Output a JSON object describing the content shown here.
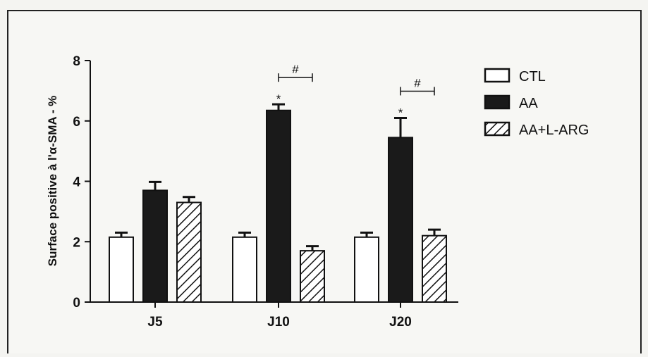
{
  "chart_data": {
    "type": "bar",
    "ylabel": "Surface positive à l'α-SMA - %",
    "xlabel": "",
    "ylim": [
      0,
      8
    ],
    "yticks": [
      0,
      2,
      4,
      6,
      8
    ],
    "categories": [
      "J5",
      "J10",
      "J20"
    ],
    "series": [
      {
        "name": "CTL",
        "values": [
          2.15,
          2.15,
          2.15
        ],
        "errors": [
          0.15,
          0.15,
          0.15
        ],
        "pattern": "open",
        "color": "#ffffff"
      },
      {
        "name": "AA",
        "values": [
          3.7,
          6.35,
          5.45
        ],
        "errors": [
          0.28,
          0.2,
          0.65
        ],
        "pattern": "solid",
        "color": "#1a1a1a"
      },
      {
        "name": "AA+L-ARG",
        "values": [
          3.3,
          1.7,
          2.2
        ],
        "errors": [
          0.18,
          0.15,
          0.2
        ],
        "pattern": "hatched",
        "color": "#ffffff"
      }
    ],
    "annotations": [
      {
        "category": "J10",
        "series": "AA",
        "marker": "*"
      },
      {
        "category": "J10",
        "bracket": [
          "AA",
          "AA+L-ARG"
        ],
        "marker": "#"
      },
      {
        "category": "J20",
        "series": "AA",
        "marker": "*"
      },
      {
        "category": "J20",
        "bracket": [
          "AA",
          "AA+L-ARG"
        ],
        "marker": "#"
      }
    ],
    "legend_position": "top-right",
    "grid": false
  }
}
